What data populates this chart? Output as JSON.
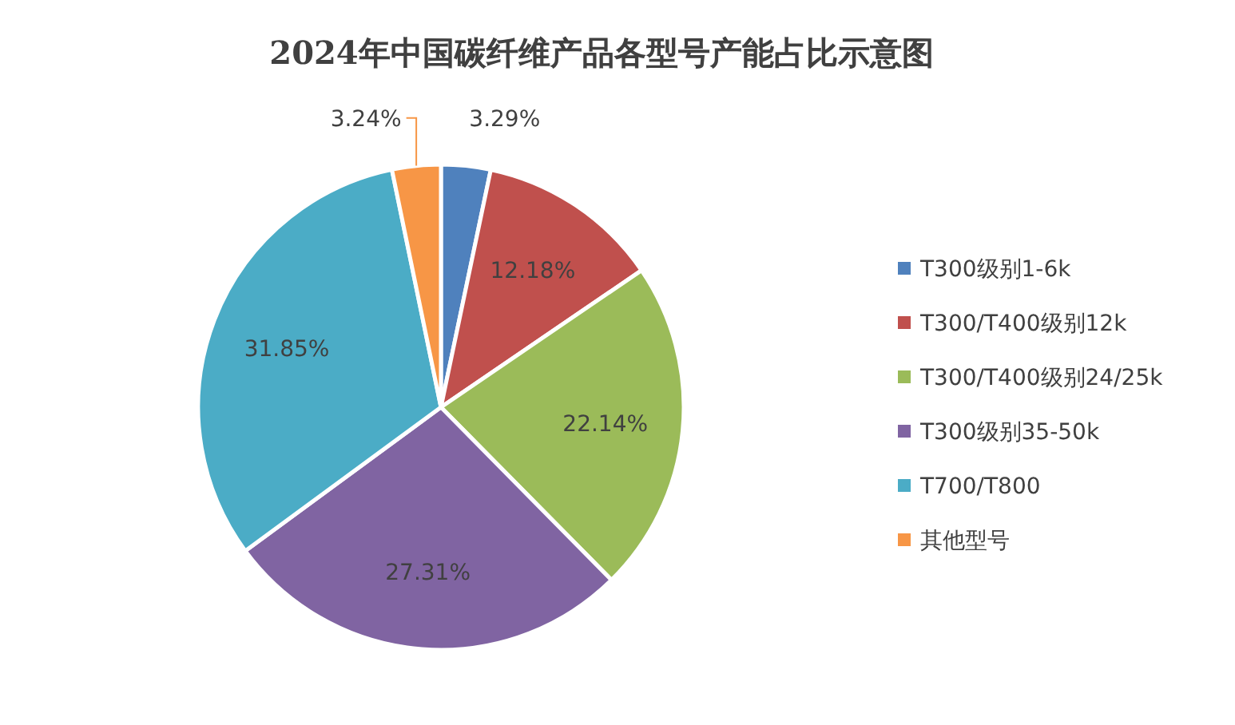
{
  "chart_data": {
    "type": "pie",
    "title": "2024年中国碳纤维产品各型号产能占比示意图",
    "categories": [
      "T300级别1-6k",
      "T300/T400级别12k",
      "T300/T400级别24/25k",
      "T300级别35-50k",
      "T700/T800",
      "其他型号"
    ],
    "values": [
      3.29,
      12.18,
      22.14,
      27.31,
      31.85,
      3.24
    ],
    "value_labels": [
      "3.29%",
      "12.18%",
      "22.14%",
      "27.31%",
      "31.85%",
      "3.24%"
    ],
    "colors": [
      "#4f81bd",
      "#c0504d",
      "#9bbb59",
      "#8064a2",
      "#4bacc6",
      "#f79646"
    ],
    "legend": "right"
  }
}
